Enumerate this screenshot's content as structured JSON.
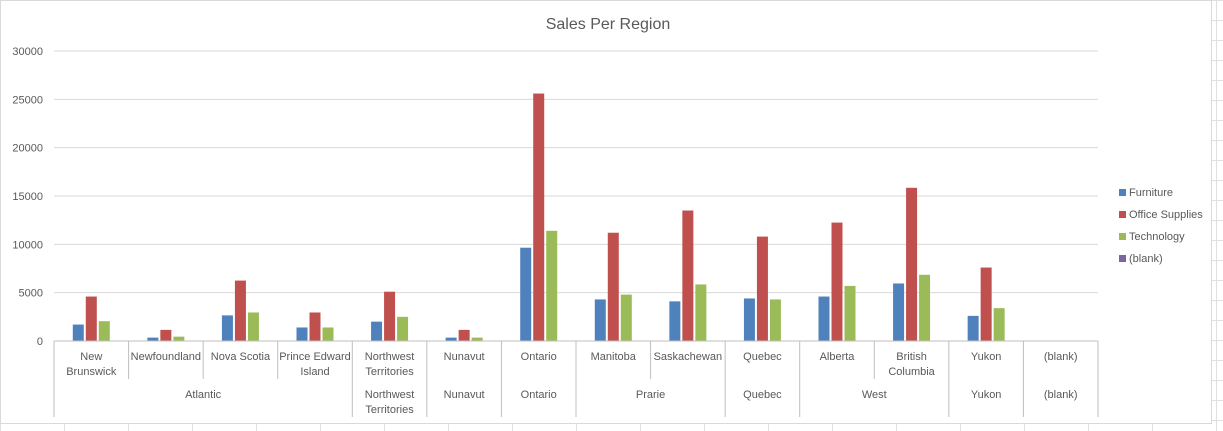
{
  "colors": {
    "Furniture": "#4f81bd",
    "Office Supplies": "#c0504d",
    "Technology": "#9bbb59",
    "(blank)": "#8064a2",
    "gridline": "#d9d9d9",
    "axis_line": "#bfbfbf",
    "text": "#595959",
    "sheet_grid": "#e0e0e0"
  },
  "chart_data": {
    "type": "bar",
    "title": "Sales Per Region",
    "xlabel": "",
    "ylabel": "",
    "ylim": [
      0,
      30000
    ],
    "yticks": [
      0,
      5000,
      10000,
      15000,
      20000,
      25000,
      30000
    ],
    "grid": true,
    "legend_position": "right",
    "categories": [
      {
        "label": [
          "New",
          "Brunswick"
        ],
        "group": "Atlantic"
      },
      {
        "label": [
          "Newfoundland"
        ],
        "group": "Atlantic"
      },
      {
        "label": [
          "Nova Scotia"
        ],
        "group": "Atlantic"
      },
      {
        "label": [
          "Prince Edward",
          "Island"
        ],
        "group": "Atlantic"
      },
      {
        "label": [
          "Northwest",
          "Territories"
        ],
        "group": "Northwest Territories"
      },
      {
        "label": [
          "Nunavut"
        ],
        "group": "Nunavut"
      },
      {
        "label": [
          "Ontario"
        ],
        "group": "Ontario"
      },
      {
        "label": [
          "Manitoba"
        ],
        "group": "Prarie"
      },
      {
        "label": [
          "Saskachewan"
        ],
        "group": "Prarie"
      },
      {
        "label": [
          "Quebec"
        ],
        "group": "Quebec"
      },
      {
        "label": [
          "Alberta"
        ],
        "group": "West"
      },
      {
        "label": [
          "British",
          "Columbia"
        ],
        "group": "West"
      },
      {
        "label": [
          "Yukon"
        ],
        "group": "Yukon"
      },
      {
        "label": [
          "(blank)"
        ],
        "group": "(blank)"
      }
    ],
    "groups": [
      {
        "label": [
          "Atlantic"
        ],
        "span": 4
      },
      {
        "label": [
          "Northwest",
          "Territories"
        ],
        "span": 1
      },
      {
        "label": [
          "Nunavut"
        ],
        "span": 1
      },
      {
        "label": [
          "Ontario"
        ],
        "span": 1
      },
      {
        "label": [
          "Prarie"
        ],
        "span": 2
      },
      {
        "label": [
          "Quebec"
        ],
        "span": 1
      },
      {
        "label": [
          "West"
        ],
        "span": 2
      },
      {
        "label": [
          "Yukon"
        ],
        "span": 1
      },
      {
        "label": [
          "(blank)"
        ],
        "span": 1
      }
    ],
    "series": [
      {
        "name": "Furniture",
        "values": [
          1700,
          350,
          2650,
          1400,
          2000,
          350,
          9650,
          4300,
          4100,
          4400,
          4600,
          5950,
          2600,
          null
        ]
      },
      {
        "name": "Office Supplies",
        "values": [
          4600,
          1150,
          6250,
          2950,
          5100,
          1150,
          25600,
          11200,
          13500,
          10800,
          12250,
          15850,
          7600,
          null
        ]
      },
      {
        "name": "Technology",
        "values": [
          2050,
          450,
          2950,
          1400,
          2500,
          350,
          11400,
          4800,
          5850,
          4300,
          5700,
          6850,
          3400,
          null
        ]
      },
      {
        "name": "(blank)",
        "values": [
          null,
          null,
          null,
          null,
          null,
          null,
          null,
          null,
          null,
          null,
          null,
          null,
          null,
          null
        ]
      }
    ]
  }
}
